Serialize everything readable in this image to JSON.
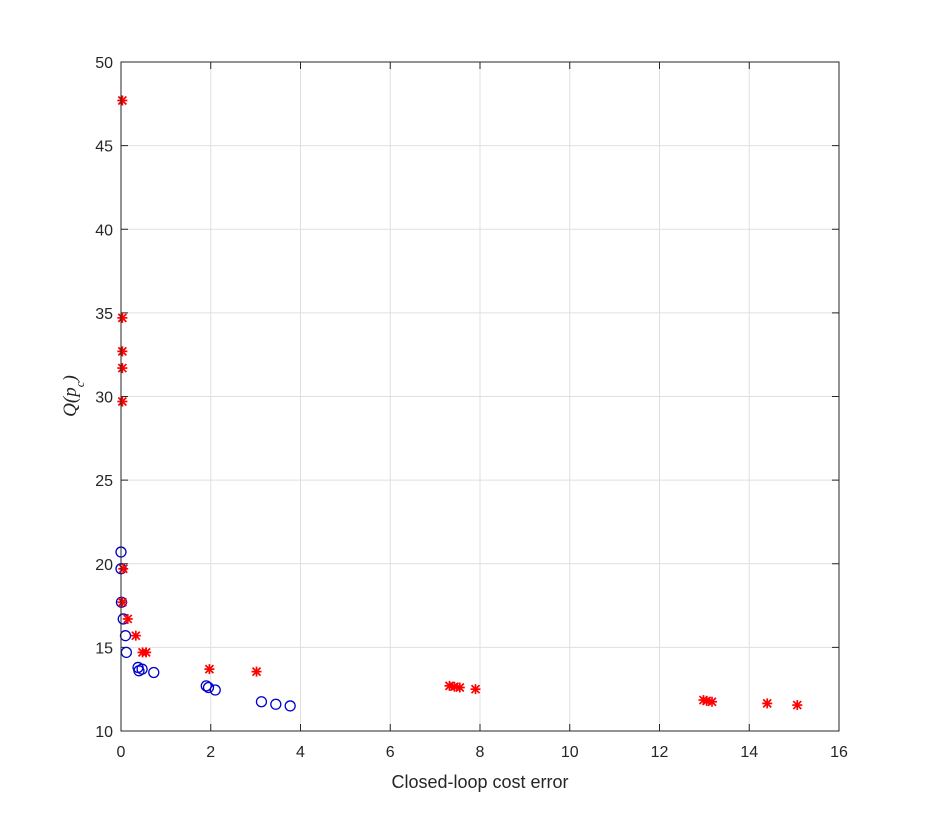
{
  "chart_data": {
    "type": "scatter",
    "title": "",
    "xlabel": "Closed-loop cost error",
    "ylabel": "Q(p_c)",
    "xlim": [
      0,
      16
    ],
    "ylim": [
      10,
      50
    ],
    "x_ticks": [
      0,
      2,
      4,
      6,
      8,
      10,
      12,
      14,
      16
    ],
    "y_ticks": [
      10,
      15,
      20,
      25,
      30,
      35,
      40,
      45,
      50
    ],
    "grid": true,
    "series": [
      {
        "marker": "circle",
        "color": "#0000cc",
        "points": [
          [
            0.0,
            20.7
          ],
          [
            0.0,
            19.7
          ],
          [
            0.01,
            17.7
          ],
          [
            0.05,
            16.7
          ],
          [
            0.1,
            15.7
          ],
          [
            0.12,
            14.7
          ],
          [
            0.38,
            13.8
          ],
          [
            0.4,
            13.6
          ],
          [
            0.47,
            13.7
          ],
          [
            0.73,
            13.5
          ],
          [
            1.9,
            12.7
          ],
          [
            1.95,
            12.6
          ],
          [
            2.1,
            12.45
          ],
          [
            3.13,
            11.75
          ],
          [
            3.45,
            11.6
          ],
          [
            3.77,
            11.5
          ]
        ]
      },
      {
        "marker": "asterisk",
        "color": "#ff0000",
        "points": [
          [
            0.03,
            47.7
          ],
          [
            0.03,
            34.7
          ],
          [
            0.03,
            32.7
          ],
          [
            0.03,
            31.7
          ],
          [
            0.03,
            29.7
          ],
          [
            0.05,
            19.7
          ],
          [
            0.03,
            17.7
          ],
          [
            0.15,
            16.7
          ],
          [
            0.33,
            15.7
          ],
          [
            0.48,
            14.7
          ],
          [
            0.56,
            14.7
          ],
          [
            1.97,
            13.7
          ],
          [
            3.02,
            13.55
          ],
          [
            7.32,
            12.7
          ],
          [
            7.43,
            12.65
          ],
          [
            7.55,
            12.6
          ],
          [
            7.9,
            12.5
          ],
          [
            12.98,
            11.85
          ],
          [
            13.05,
            11.8
          ],
          [
            13.17,
            11.75
          ],
          [
            14.4,
            11.65
          ],
          [
            15.07,
            11.55
          ]
        ]
      }
    ]
  }
}
